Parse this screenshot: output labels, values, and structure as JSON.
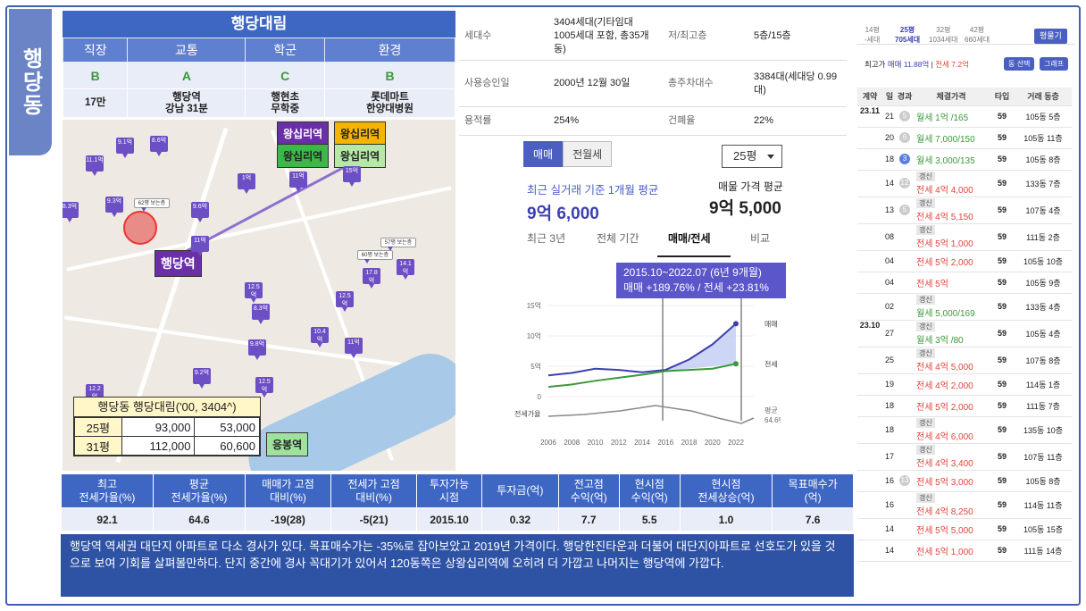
{
  "side_tab": "행당동",
  "summary": {
    "title": "행당대림",
    "headers": [
      "직장",
      "교통",
      "학군",
      "환경"
    ],
    "grades": [
      "B",
      "A",
      "C",
      "B"
    ],
    "details": [
      "17만",
      "행당역\n강남 31분",
      "행현초\n무학중",
      "롯데마트\n한양대병원"
    ]
  },
  "map": {
    "station_label": "행당역",
    "station2_label": "응봉역",
    "chips": [
      "왕십리역",
      "왕십리역",
      "왕십리역",
      "왕십리역"
    ],
    "pins": [
      "9.1억",
      "8.6억",
      "11.1억",
      "9.3억",
      "8.3억",
      "9.6억",
      "11억",
      "15억",
      "14.1억",
      "17.8억",
      "12.5억",
      "8.3억",
      "12.5억",
      "10.4억",
      "11억",
      "9.8억",
      "12.5억",
      "12.2억",
      "9.2억",
      "11억",
      "62평 보는층",
      "57평 보는층",
      "60평 보는층",
      "1억"
    ],
    "legend": {
      "title": "행당동 행당대림('00, 3404^)",
      "rows": [
        [
          "25평",
          "93,000",
          "53,000"
        ],
        [
          "31평",
          "112,000",
          "60,600"
        ]
      ]
    }
  },
  "info": {
    "rows": [
      [
        "세대수",
        "3404세대(기타임대 1005세대 포함, 총35개동)",
        "저/최고층",
        "5층/15층"
      ],
      [
        "사용승인일",
        "2000년 12월 30일",
        "총주차대수",
        "3384대(세대당 0.99대)"
      ],
      [
        "용적률",
        "254%",
        "건폐율",
        "22%"
      ]
    ]
  },
  "price": {
    "tabs": [
      "매매",
      "전월세"
    ],
    "size": "25평",
    "recent_label": "최근 실거래 기준 1개월 평균",
    "recent_value": "9억 6,000",
    "listing_label": "매물 가격 평균",
    "listing_value": "9억 5,000",
    "chart_tabs": [
      "최근 3년",
      "전체 기간",
      "매매/전세",
      "비교"
    ],
    "tooltip_line1": "2015.10~2022.07 (6년 9개월)",
    "tooltip_line2": "매매 +189.76%  /  전세 +23.81%"
  },
  "chart_data": {
    "type": "line",
    "x": [
      "2006",
      "2008",
      "2010",
      "2012",
      "2014",
      "2016",
      "2018",
      "2020",
      "2022"
    ],
    "y_ticks": [
      "15억",
      "10억",
      "5억",
      "0"
    ],
    "ylim": [
      0,
      15
    ],
    "series": [
      {
        "name": "매매",
        "values": [
          3.5,
          3.9,
          4.6,
          4.4,
          4.0,
          4.4,
          6.1,
          8.6,
          12.0
        ]
      },
      {
        "name": "전세",
        "values": [
          1.6,
          2.0,
          2.6,
          3.1,
          3.6,
          4.2,
          4.4,
          4.6,
          5.4
        ]
      }
    ],
    "bottom_label": "전세가율",
    "bottom_right_label": "평균",
    "bottom_right_value": "64.6%"
  },
  "bottom": {
    "headers": [
      "최고\n전세가율(%)",
      "평균\n전세가율(%)",
      "매매가 고점\n대비(%)",
      "전세가 고점\n대비(%)",
      "투자가능\n시점",
      "투자금(억)",
      "전고점\n수익(억)",
      "현시점\n수익(억)",
      "현시점\n전세상승(억)",
      "목표매수가\n(억)"
    ],
    "values": [
      "92.1",
      "64.6",
      "-19(28)",
      "-5(21)",
      "2015.10",
      "0.32",
      "7.7",
      "5.5",
      "1.0",
      "7.6"
    ],
    "comment": "행당역 역세권 대단지 아파트로 다소 경사가 있다. 목표매수가는 -35%로 잡아보았고 2019년 가격이다. 행당한진타운과 더불어 대단지아파트로 선호도가 있을 것으로 보여 기회를 살펴볼만하다. 단지 중간에 경사 꼭대기가 있어서 120동쪽은 상왕십리역에 오히려 더 가깝고 나머지는 행당역에 가깝다."
  },
  "right": {
    "pyeong": [
      [
        "14평",
        "-세대"
      ],
      [
        "25평",
        "705세대"
      ],
      [
        "32평",
        "1034세대"
      ],
      [
        "42평",
        "660세대"
      ]
    ],
    "compare_btn": "평물기",
    "top_label": "최고가",
    "top_sale": "매매 11.88억",
    "top_jeonse": "전세 7.2억",
    "btn1": "동 선택",
    "btn2": "그래프",
    "headers": [
      "계약",
      "일",
      "경과",
      "체결가격",
      "타입",
      "거래 동층"
    ],
    "rows": [
      {
        "m": "23.11",
        "d": "21",
        "c": "5",
        "badge": "",
        "p": "월세 1억 /165",
        "t": "59",
        "f": "105동 5층",
        "col": "g"
      },
      {
        "m": "",
        "d": "20",
        "c": "6",
        "badge": "",
        "p": "월세 7,000/150",
        "t": "59",
        "f": "105동 11층",
        "col": "g"
      },
      {
        "m": "",
        "d": "18",
        "c": "3",
        "badge": "",
        "p": "월세 3,000/135",
        "t": "59",
        "f": "105동 8층",
        "col": "g"
      },
      {
        "m": "",
        "d": "14",
        "c": "12",
        "badge": "갱신",
        "p": "전세 4억 4,000",
        "t": "59",
        "f": "133동 7층",
        "col": "r"
      },
      {
        "m": "",
        "d": "13",
        "c": "5",
        "badge": "갱신",
        "p": "전세 4억 5,150",
        "t": "59",
        "f": "107동 4층",
        "col": "r"
      },
      {
        "m": "",
        "d": "08",
        "c": "",
        "badge": "갱신",
        "p": "전세 5억 1,000",
        "t": "59",
        "f": "111동 2층",
        "col": "r"
      },
      {
        "m": "",
        "d": "04",
        "c": "",
        "badge": "",
        "p": "전세 5억 2,000",
        "t": "59",
        "f": "105동 10층",
        "col": "r"
      },
      {
        "m": "",
        "d": "04",
        "c": "",
        "badge": "",
        "p": "전세 5억",
        "t": "59",
        "f": "105동 9층",
        "col": "r"
      },
      {
        "m": "",
        "d": "02",
        "c": "",
        "badge": "갱신",
        "p": "월세 5,000/169",
        "t": "59",
        "f": "133동 4층",
        "col": "g"
      },
      {
        "m": "23.10",
        "d": "27",
        "c": "",
        "badge": "갱신",
        "p": "월세 3억 /80",
        "t": "59",
        "f": "105동 4층",
        "col": "g"
      },
      {
        "m": "",
        "d": "25",
        "c": "",
        "badge": "갱신",
        "p": "전세 4억 5,000",
        "t": "59",
        "f": "107동 8층",
        "col": "r"
      },
      {
        "m": "",
        "d": "19",
        "c": "",
        "badge": "",
        "p": "전세 4억 2,000",
        "t": "59",
        "f": "114동 1층",
        "col": "r"
      },
      {
        "m": "",
        "d": "18",
        "c": "",
        "badge": "",
        "p": "전세 5억 2,000",
        "t": "59",
        "f": "111동 7층",
        "col": "r"
      },
      {
        "m": "",
        "d": "18",
        "c": "",
        "badge": "갱신",
        "p": "전세 4억 6,000",
        "t": "59",
        "f": "135동 10층",
        "col": "r"
      },
      {
        "m": "",
        "d": "17",
        "c": "",
        "badge": "갱신",
        "p": "전세 4억 3,400",
        "t": "59",
        "f": "107동 11층",
        "col": "r"
      },
      {
        "m": "",
        "d": "16",
        "c": "13",
        "badge": "",
        "p": "전세 5억 3,000",
        "t": "59",
        "f": "105동 8층",
        "col": "r"
      },
      {
        "m": "",
        "d": "16",
        "c": "",
        "badge": "갱신",
        "p": "전세 4억 8,250",
        "t": "59",
        "f": "114동 11층",
        "col": "r"
      },
      {
        "m": "",
        "d": "14",
        "c": "",
        "badge": "",
        "p": "전세 5억 5,000",
        "t": "59",
        "f": "105동 15층",
        "col": "r"
      },
      {
        "m": "",
        "d": "14",
        "c": "",
        "badge": "",
        "p": "전세 5억 1,000",
        "t": "59",
        "f": "111동 14층",
        "col": "r"
      }
    ]
  }
}
